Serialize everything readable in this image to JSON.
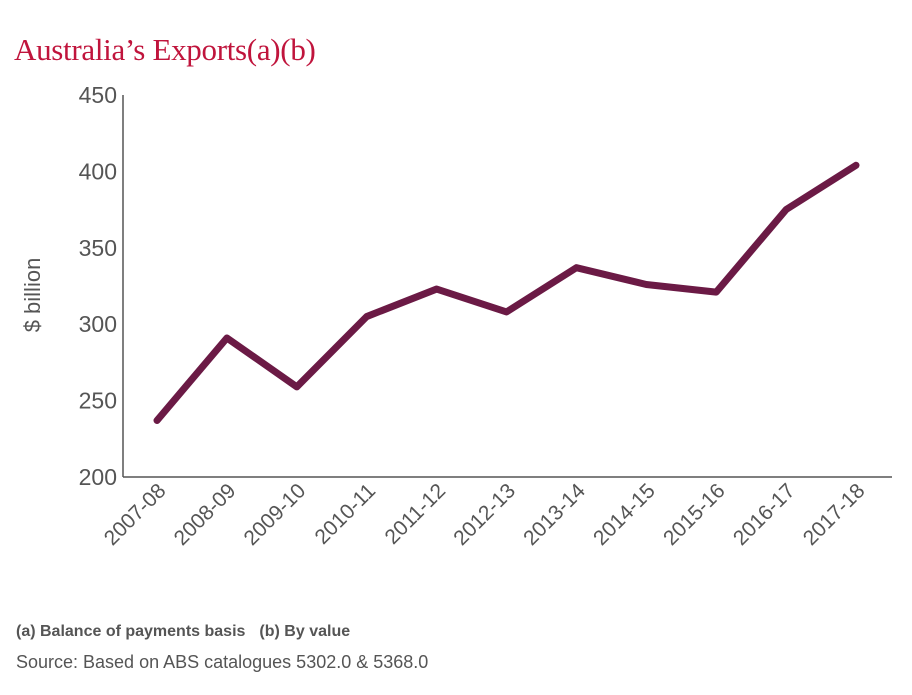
{
  "title": "Australia’s Exports(a)(b)",
  "footnotes": {
    "a": "(a) Balance of payments basis",
    "b": "(b) By value"
  },
  "source": "Source: Based on ABS catalogues 5302.0 & 5368.0",
  "colors": {
    "title": "#c0143c",
    "line": "#6b1a45",
    "axis": "#555555"
  },
  "chart_data": {
    "type": "line",
    "title": "Australia’s Exports(a)(b)",
    "xlabel": "",
    "ylabel": "$ billion",
    "categories": [
      "2007-08",
      "2008-09",
      "2009-10",
      "2010-11",
      "2011-12",
      "2012-13",
      "2013-14",
      "2014-15",
      "2015-16",
      "2016-17",
      "2017-18"
    ],
    "series": [
      {
        "values": [
          237,
          291,
          259,
          305,
          323,
          308,
          337,
          326,
          321,
          375,
          404
        ]
      }
    ],
    "ylim": [
      200,
      450
    ],
    "yticks": [
      200,
      250,
      300,
      350,
      400,
      450
    ],
    "grid": false,
    "legend": "none"
  }
}
